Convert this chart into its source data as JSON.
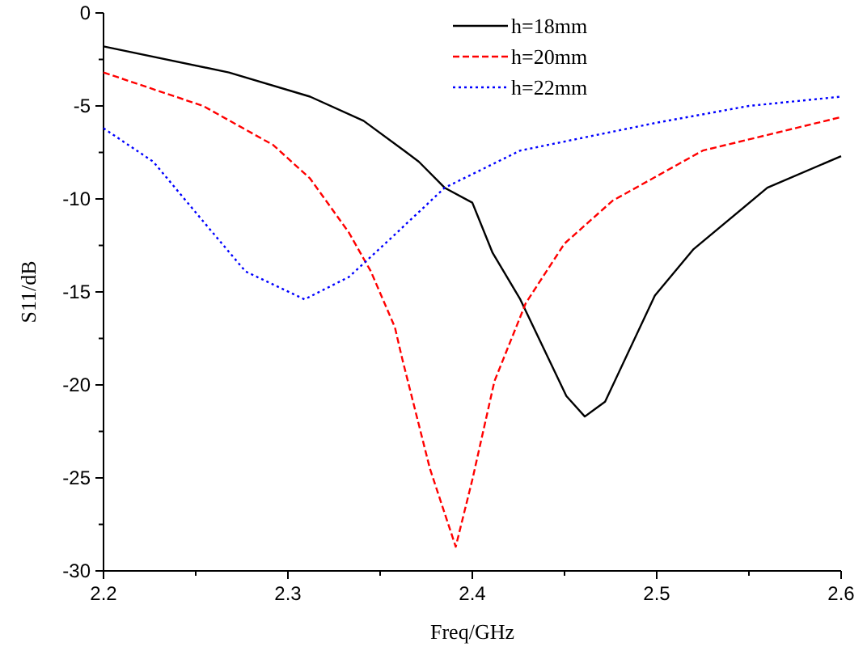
{
  "chart_data": {
    "type": "line",
    "xlabel": "Freq/GHz",
    "ylabel": "S11/dB",
    "xlim": [
      2.2,
      2.6
    ],
    "ylim": [
      -30,
      0
    ],
    "xticks": [
      2.2,
      2.3,
      2.4,
      2.5,
      2.6
    ],
    "yticks": [
      -30,
      -25,
      -20,
      -15,
      -10,
      -5,
      0
    ],
    "legend": "top right",
    "grid": false,
    "series": [
      {
        "name": "h=18mm",
        "color": "#000000",
        "line_style": "solid",
        "x": [
          2.2,
          2.268,
          2.312,
          2.341,
          2.363,
          2.371,
          2.385,
          2.4,
          2.411,
          2.426,
          2.451,
          2.461,
          2.472,
          2.499,
          2.52,
          2.56,
          2.6
        ],
        "values": [
          -1.8,
          -3.2,
          -4.5,
          -5.8,
          -7.4,
          -8.0,
          -9.4,
          -10.2,
          -12.9,
          -15.4,
          -20.6,
          -21.7,
          -20.9,
          -15.2,
          -12.7,
          -9.4,
          -7.7
        ]
      },
      {
        "name": "h=20mm",
        "color": "#ff0000",
        "line_style": "dashed",
        "x": [
          2.2,
          2.254,
          2.292,
          2.312,
          2.333,
          2.345,
          2.358,
          2.362,
          2.377,
          2.391,
          2.4,
          2.412,
          2.429,
          2.45,
          2.476,
          2.525,
          2.6
        ],
        "values": [
          -3.2,
          -5.0,
          -7.1,
          -8.9,
          -11.8,
          -13.9,
          -16.9,
          -18.6,
          -24.5,
          -28.7,
          -25.1,
          -19.8,
          -15.6,
          -12.4,
          -10.1,
          -7.4,
          -5.6
        ]
      },
      {
        "name": "h=22mm",
        "color": "#0000ff",
        "line_style": "dotted",
        "x": [
          2.2,
          2.227,
          2.254,
          2.277,
          2.309,
          2.333,
          2.356,
          2.385,
          2.426,
          2.5,
          2.55,
          2.6
        ],
        "values": [
          -6.2,
          -8.0,
          -11.2,
          -13.9,
          -15.4,
          -14.2,
          -12.1,
          -9.4,
          -7.4,
          -5.9,
          -5.0,
          -4.5
        ]
      }
    ]
  }
}
